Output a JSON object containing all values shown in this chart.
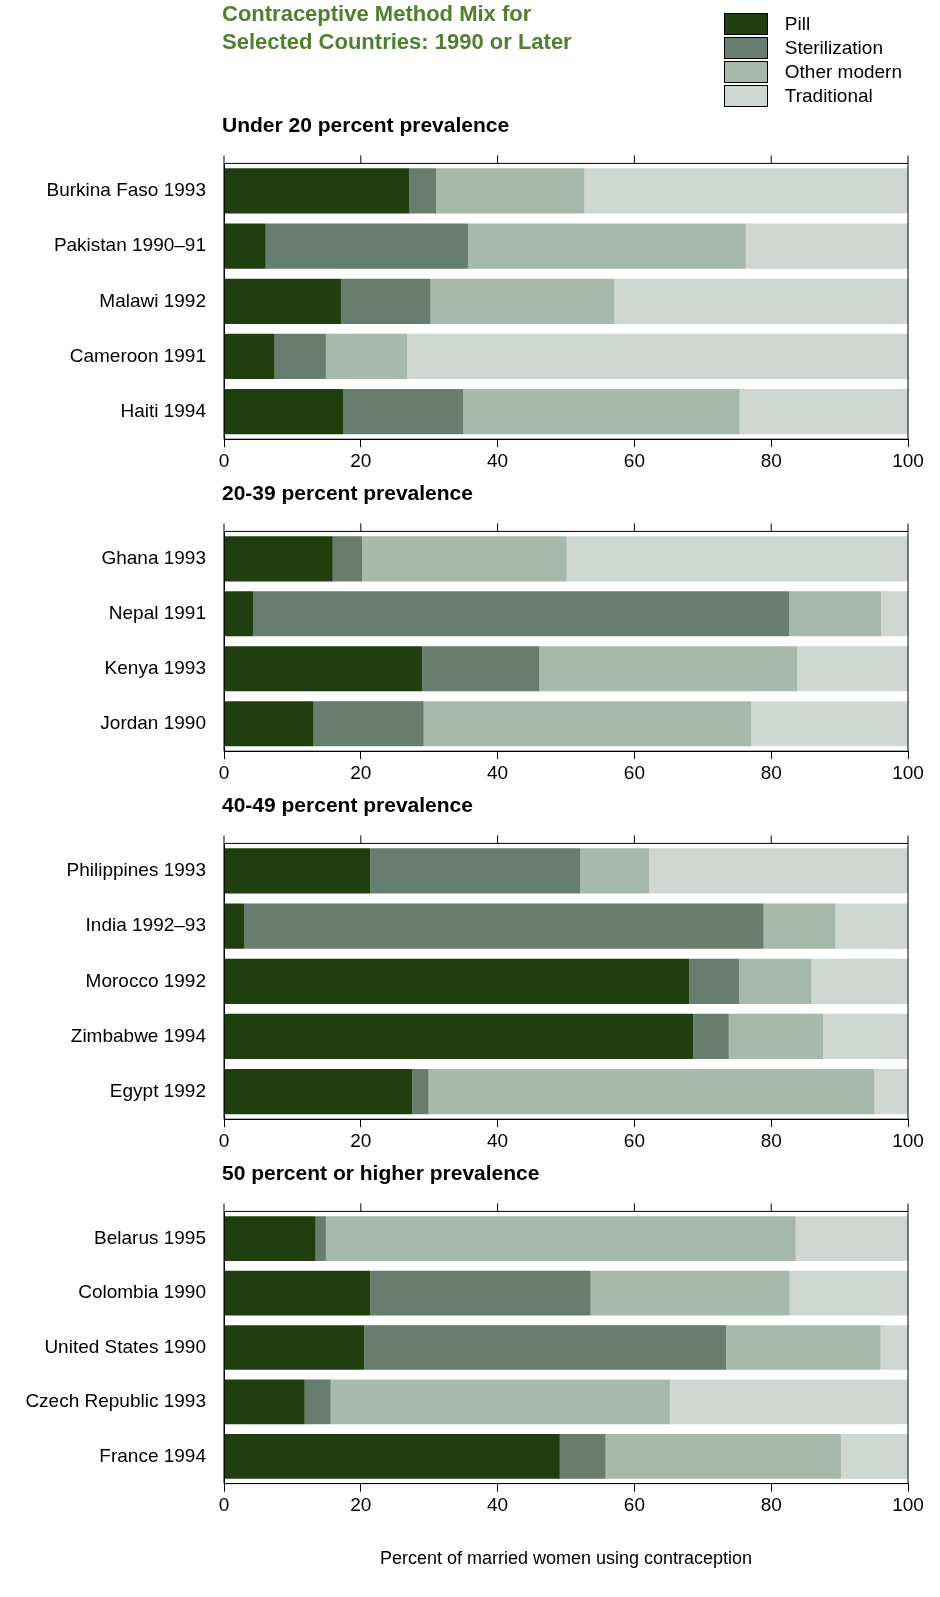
{
  "chart_data": [
    {
      "type": "bar",
      "orientation": "horizontal",
      "stacked": true,
      "title": "Contraceptive Method Mix for Selected Countries:  1990 or Later",
      "subtitle": "Under 20 percent prevalence",
      "legend": "top right",
      "grid": false,
      "xlim": [
        0,
        100
      ],
      "xticks": [
        0,
        20,
        40,
        60,
        80,
        100
      ],
      "categories": [
        "Burkina Faso 1993",
        "Pakistan 1990–91",
        "Malawi 1992",
        "Cameroon 1991",
        "Haiti 1994"
      ],
      "series": [
        {
          "name": "Pill",
          "color": "#1f3f0f",
          "values": [
            27.1,
            6.1,
            17.1,
            7.4,
            17.4
          ]
        },
        {
          "name": "Sterilization",
          "color": "#667d6f",
          "values": [
            3.9,
            29.6,
            13.1,
            7.5,
            17.6
          ]
        },
        {
          "name": "Other modern",
          "color": "#a7b9ad",
          "values": [
            21.7,
            40.6,
            26.9,
            11.9,
            40.4
          ]
        },
        {
          "name": "Traditional",
          "color": "#d0d6d2",
          "values": [
            47.3,
            23.7,
            42.9,
            73.2,
            24.6
          ]
        }
      ]
    },
    {
      "type": "bar",
      "orientation": "horizontal",
      "stacked": true,
      "title": "20-39 percent prevalence",
      "grid": false,
      "xlim": [
        0,
        100
      ],
      "xticks": [
        0,
        20,
        40,
        60,
        80,
        100
      ],
      "categories": [
        "Ghana 1993",
        "Nepal 1991",
        "Kenya 1993",
        "Jordan 1990"
      ],
      "series": [
        {
          "color": "#1f3f0f",
          "values": [
            15.9,
            4.3,
            29.0,
            13.1
          ]
        },
        {
          "color": "#667d6f",
          "values": [
            4.3,
            78.3,
            17.1,
            16.1
          ]
        },
        {
          "color": "#a7b9ad",
          "values": [
            29.9,
            13.5,
            37.7,
            47.9
          ]
        },
        {
          "color": "#d0d6d2",
          "values": [
            49.9,
            3.9,
            16.2,
            22.9
          ]
        }
      ]
    },
    {
      "type": "bar",
      "orientation": "horizontal",
      "stacked": true,
      "title": "40-49 percent prevalence",
      "grid": false,
      "xlim": [
        0,
        100
      ],
      "xticks": [
        0,
        20,
        40,
        60,
        80,
        100
      ],
      "categories": [
        "Philippines 1993",
        "India 1992–93",
        "Morocco 1992",
        "Zimbabwe 1994",
        "Egypt 1992"
      ],
      "series": [
        {
          "color": "#1f3f0f",
          "values": [
            21.4,
            3.0,
            68.0,
            68.6,
            27.5
          ]
        },
        {
          "color": "#667d6f",
          "values": [
            30.7,
            75.9,
            7.3,
            5.2,
            2.4
          ]
        },
        {
          "color": "#a7b9ad",
          "values": [
            10.1,
            10.5,
            10.6,
            13.8,
            65.2
          ]
        },
        {
          "color": "#d0d6d2",
          "values": [
            37.8,
            10.6,
            14.1,
            12.4,
            4.9
          ]
        }
      ]
    },
    {
      "type": "bar",
      "orientation": "horizontal",
      "stacked": true,
      "title": "50 percent or higher prevalence",
      "xlabel": "Percent of married women using contraception",
      "grid": false,
      "xlim": [
        0,
        100
      ],
      "xticks": [
        0,
        20,
        40,
        60,
        80,
        100
      ],
      "categories": [
        "Belarus 1995",
        "Colombia 1990",
        "United States 1990",
        "Czech Republic 1993",
        "France 1994"
      ],
      "series": [
        {
          "color": "#1f3f0f",
          "values": [
            13.4,
            21.4,
            20.5,
            11.8,
            49.1
          ]
        },
        {
          "color": "#667d6f",
          "values": [
            1.5,
            32.2,
            52.9,
            3.8,
            6.7
          ]
        },
        {
          "color": "#a7b9ad",
          "values": [
            68.7,
            29.1,
            22.6,
            49.6,
            34.4
          ]
        },
        {
          "color": "#d0d6d2",
          "values": [
            16.4,
            17.3,
            4.0,
            34.8,
            9.8
          ]
        }
      ]
    }
  ]
}
